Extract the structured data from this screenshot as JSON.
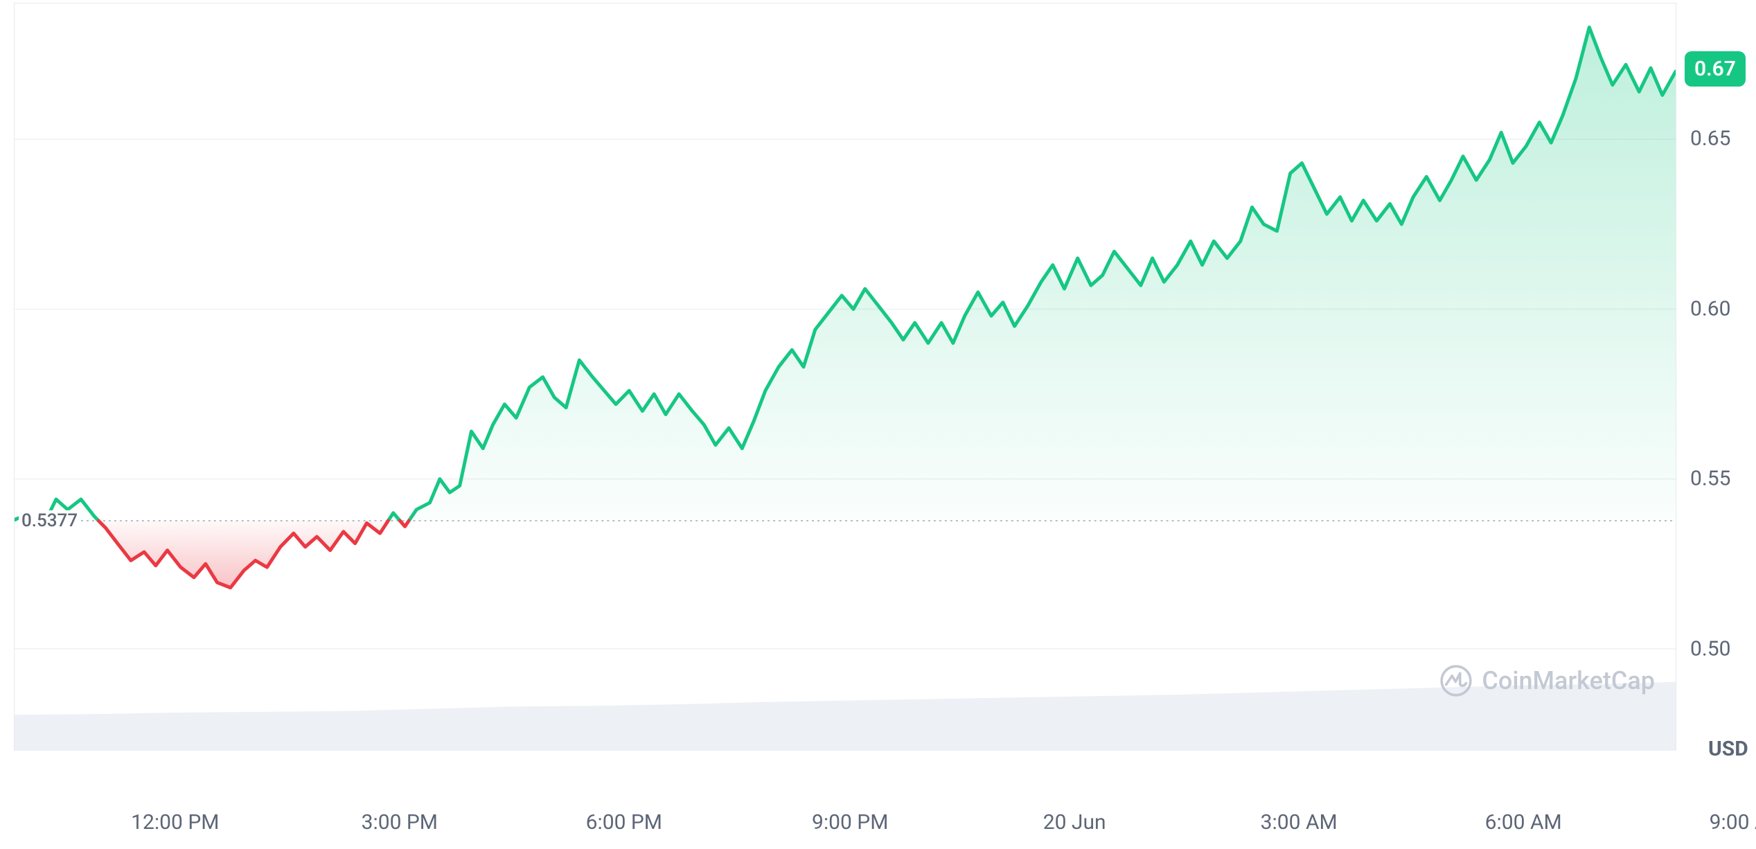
{
  "chart": {
    "type": "area",
    "unit_label": "USD",
    "baseline_value": 0.5377,
    "baseline_label": "0.5377",
    "current_value": 0.67,
    "current_label": "0.67",
    "y_axis": {
      "min": 0.47,
      "max": 0.69,
      "ticks": [
        {
          "v": 0.5,
          "label": "0.50"
        },
        {
          "v": 0.55,
          "label": "0.55"
        },
        {
          "v": 0.6,
          "label": "0.60"
        },
        {
          "v": 0.65,
          "label": "0.65"
        }
      ]
    },
    "x_axis": {
      "ticks": [
        {
          "t": 0.097,
          "label": "12:00 PM"
        },
        {
          "t": 0.232,
          "label": "3:00 PM"
        },
        {
          "t": 0.367,
          "label": "6:00 PM"
        },
        {
          "t": 0.503,
          "label": "9:00 PM"
        },
        {
          "t": 0.638,
          "label": "20 Jun"
        },
        {
          "t": 0.773,
          "label": "3:00 AM"
        },
        {
          "t": 0.908,
          "label": "6:00 AM"
        },
        {
          "t": 1.043,
          "label": "9:00 AM"
        }
      ]
    },
    "series": {
      "name": "price",
      "points": [
        [
          0.0,
          0.538
        ],
        [
          0.01,
          0.54
        ],
        [
          0.018,
          0.537
        ],
        [
          0.025,
          0.544
        ],
        [
          0.032,
          0.541
        ],
        [
          0.04,
          0.544
        ],
        [
          0.048,
          0.539
        ],
        [
          0.055,
          0.5355
        ],
        [
          0.062,
          0.531
        ],
        [
          0.07,
          0.526
        ],
        [
          0.078,
          0.5285
        ],
        [
          0.085,
          0.5245
        ],
        [
          0.092,
          0.529
        ],
        [
          0.1,
          0.524
        ],
        [
          0.108,
          0.521
        ],
        [
          0.115,
          0.525
        ],
        [
          0.122,
          0.5195
        ],
        [
          0.13,
          0.518
        ],
        [
          0.138,
          0.523
        ],
        [
          0.145,
          0.526
        ],
        [
          0.152,
          0.524
        ],
        [
          0.16,
          0.53
        ],
        [
          0.168,
          0.534
        ],
        [
          0.175,
          0.53
        ],
        [
          0.182,
          0.533
        ],
        [
          0.19,
          0.529
        ],
        [
          0.198,
          0.5345
        ],
        [
          0.205,
          0.531
        ],
        [
          0.212,
          0.537
        ],
        [
          0.22,
          0.534
        ],
        [
          0.228,
          0.54
        ],
        [
          0.235,
          0.536
        ],
        [
          0.242,
          0.541
        ],
        [
          0.25,
          0.543
        ],
        [
          0.256,
          0.55
        ],
        [
          0.262,
          0.546
        ],
        [
          0.268,
          0.548
        ],
        [
          0.275,
          0.564
        ],
        [
          0.282,
          0.559
        ],
        [
          0.288,
          0.566
        ],
        [
          0.295,
          0.572
        ],
        [
          0.302,
          0.568
        ],
        [
          0.31,
          0.577
        ],
        [
          0.318,
          0.58
        ],
        [
          0.325,
          0.574
        ],
        [
          0.332,
          0.571
        ],
        [
          0.34,
          0.585
        ],
        [
          0.348,
          0.58
        ],
        [
          0.355,
          0.576
        ],
        [
          0.362,
          0.572
        ],
        [
          0.37,
          0.576
        ],
        [
          0.378,
          0.57
        ],
        [
          0.385,
          0.575
        ],
        [
          0.392,
          0.569
        ],
        [
          0.4,
          0.575
        ],
        [
          0.408,
          0.57
        ],
        [
          0.415,
          0.566
        ],
        [
          0.422,
          0.56
        ],
        [
          0.43,
          0.565
        ],
        [
          0.438,
          0.559
        ],
        [
          0.445,
          0.567
        ],
        [
          0.452,
          0.576
        ],
        [
          0.46,
          0.583
        ],
        [
          0.468,
          0.588
        ],
        [
          0.475,
          0.583
        ],
        [
          0.482,
          0.594
        ],
        [
          0.49,
          0.599
        ],
        [
          0.498,
          0.604
        ],
        [
          0.505,
          0.6
        ],
        [
          0.512,
          0.606
        ],
        [
          0.52,
          0.601
        ],
        [
          0.528,
          0.596
        ],
        [
          0.535,
          0.591
        ],
        [
          0.542,
          0.596
        ],
        [
          0.55,
          0.59
        ],
        [
          0.558,
          0.596
        ],
        [
          0.565,
          0.59
        ],
        [
          0.572,
          0.598
        ],
        [
          0.58,
          0.605
        ],
        [
          0.588,
          0.598
        ],
        [
          0.595,
          0.602
        ],
        [
          0.602,
          0.595
        ],
        [
          0.61,
          0.601
        ],
        [
          0.618,
          0.608
        ],
        [
          0.625,
          0.613
        ],
        [
          0.632,
          0.606
        ],
        [
          0.64,
          0.615
        ],
        [
          0.648,
          0.607
        ],
        [
          0.655,
          0.61
        ],
        [
          0.662,
          0.617
        ],
        [
          0.67,
          0.612
        ],
        [
          0.678,
          0.607
        ],
        [
          0.685,
          0.615
        ],
        [
          0.692,
          0.608
        ],
        [
          0.7,
          0.613
        ],
        [
          0.708,
          0.62
        ],
        [
          0.715,
          0.613
        ],
        [
          0.722,
          0.62
        ],
        [
          0.73,
          0.615
        ],
        [
          0.738,
          0.62
        ],
        [
          0.745,
          0.63
        ],
        [
          0.752,
          0.625
        ],
        [
          0.76,
          0.623
        ],
        [
          0.768,
          0.64
        ],
        [
          0.775,
          0.643
        ],
        [
          0.782,
          0.636
        ],
        [
          0.79,
          0.628
        ],
        [
          0.798,
          0.633
        ],
        [
          0.805,
          0.626
        ],
        [
          0.812,
          0.632
        ],
        [
          0.82,
          0.626
        ],
        [
          0.828,
          0.631
        ],
        [
          0.835,
          0.625
        ],
        [
          0.842,
          0.633
        ],
        [
          0.85,
          0.639
        ],
        [
          0.858,
          0.632
        ],
        [
          0.865,
          0.638
        ],
        [
          0.872,
          0.645
        ],
        [
          0.88,
          0.638
        ],
        [
          0.888,
          0.644
        ],
        [
          0.895,
          0.652
        ],
        [
          0.902,
          0.643
        ],
        [
          0.91,
          0.648
        ],
        [
          0.918,
          0.655
        ],
        [
          0.925,
          0.649
        ],
        [
          0.932,
          0.657
        ],
        [
          0.94,
          0.668
        ],
        [
          0.948,
          0.683
        ],
        [
          0.955,
          0.674
        ],
        [
          0.962,
          0.666
        ],
        [
          0.97,
          0.672
        ],
        [
          0.978,
          0.664
        ],
        [
          0.985,
          0.671
        ],
        [
          0.992,
          0.663
        ],
        [
          1.0,
          0.67
        ]
      ]
    },
    "volume_series": {
      "base": 0.06,
      "points": [
        [
          0.0,
          0.048
        ],
        [
          0.05,
          0.049
        ],
        [
          0.1,
          0.051
        ],
        [
          0.15,
          0.052
        ],
        [
          0.2,
          0.053
        ],
        [
          0.25,
          0.056
        ],
        [
          0.3,
          0.059
        ],
        [
          0.35,
          0.06
        ],
        [
          0.4,
          0.062
        ],
        [
          0.45,
          0.065
        ],
        [
          0.5,
          0.067
        ],
        [
          0.55,
          0.069
        ],
        [
          0.6,
          0.071
        ],
        [
          0.65,
          0.073
        ],
        [
          0.7,
          0.075
        ],
        [
          0.75,
          0.078
        ],
        [
          0.8,
          0.081
        ],
        [
          0.85,
          0.084
        ],
        [
          0.9,
          0.087
        ],
        [
          0.95,
          0.089
        ],
        [
          1.0,
          0.092
        ]
      ]
    },
    "watermark_text": "CoinMarketCap",
    "colors": {
      "up_line": "#16c784",
      "up_fill_top": "rgba(22,199,132,0.28)",
      "up_fill_bottom": "rgba(22,199,132,0.02)",
      "down_line": "#ea3943",
      "down_fill_top": "rgba(234,57,67,0.30)",
      "down_fill_bottom": "rgba(234,57,67,0.03)",
      "grid": "#eef1f5",
      "baseline": "#b8bec9",
      "axis_text": "#5d6677",
      "badge_bg": "#16c784",
      "volume_fill": "#edf0f4",
      "watermark": "#c3c9d4"
    },
    "line_width": 5
  }
}
